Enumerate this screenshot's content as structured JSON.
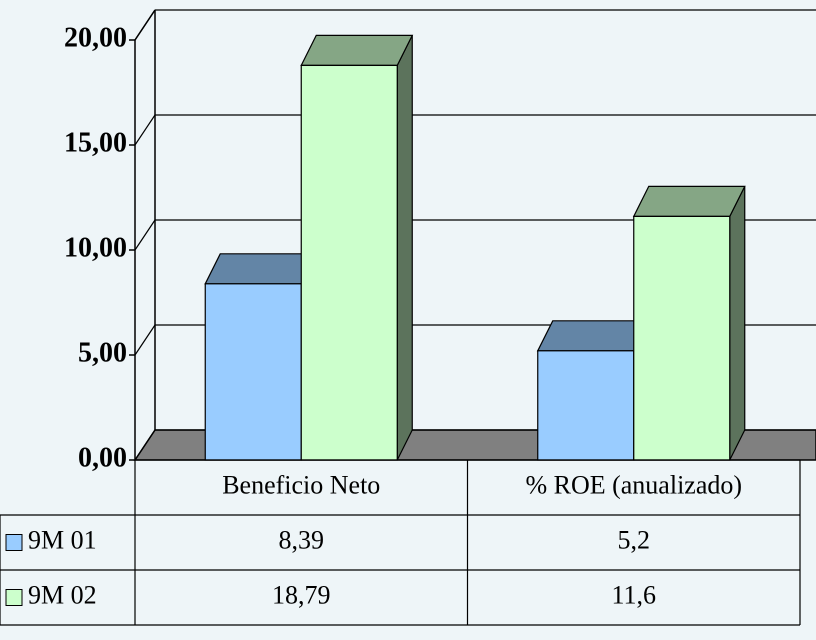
{
  "chart_data": {
    "type": "bar3d",
    "categories": [
      "Beneficio Neto",
      "% ROE (anualizado)"
    ],
    "series": [
      {
        "name": "9M 01",
        "color": "#99ccff",
        "values": [
          8.39,
          5.2
        ],
        "value_labels": [
          "8,39",
          "5,2"
        ]
      },
      {
        "name": "9M 02",
        "color": "#ccffcc",
        "values": [
          18.79,
          11.6
        ],
        "value_labels": [
          "18,79",
          "11,6"
        ]
      }
    ],
    "ylim": [
      0,
      20
    ],
    "yticks": [
      {
        "value": 0,
        "label": "0,00"
      },
      {
        "value": 5,
        "label": "5,00"
      },
      {
        "value": 10,
        "label": "10,00"
      },
      {
        "value": 15,
        "label": "15,00"
      },
      {
        "value": 20,
        "label": "20,00"
      }
    ],
    "grid": true
  }
}
